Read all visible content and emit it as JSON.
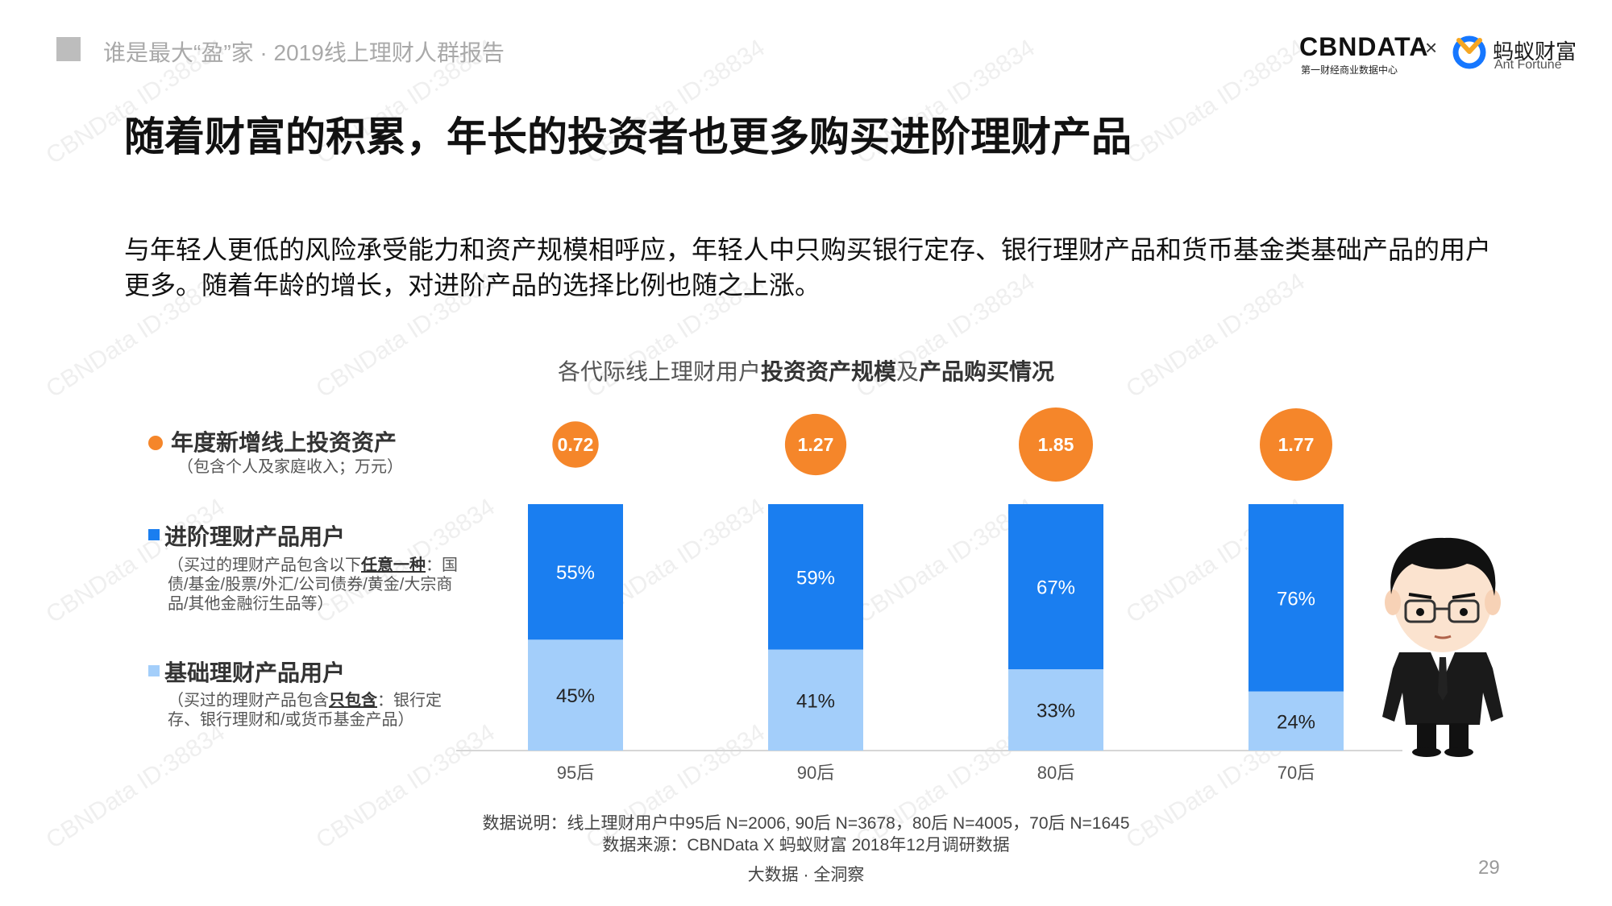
{
  "header": {
    "report_title": "谁是最大“盈”家 · 2019线上理财人群报告",
    "logo_cbn": "CBNDATA",
    "logo_cbn_sub": "第一财经商业数据中心",
    "logo_times": "×",
    "logo_ant_cn": "蚂蚁财富",
    "logo_ant_en": "Ant Fortune"
  },
  "main_title": "随着财富的积累，年长的投资者也更多购买进阶理财产品",
  "description": "与年轻人更低的风险承受能力和资产规模相呼应，年轻人中只购买银行定存、银行理财产品和货币基金类基础产品的用户更多。随着年龄的增长，对进阶产品的选择比例也随之上涨。",
  "chart_title": {
    "part1": "各代际线上理财用户",
    "part2": "投资资产规模",
    "part3": "及",
    "part4": "产品购买情况"
  },
  "legend": {
    "new_assets": {
      "label": "年度新增线上投资资产",
      "note": "（包含个人及家庭收入；万元）",
      "color": "#f5862a"
    },
    "advanced": {
      "label": "进阶理财产品用户",
      "note_a": "（买过的理财产品包含以下",
      "note_b": "任意一种",
      "note_c": "：国债/基金/股票/外汇/公司债券/黄金/大宗商品/其他金融衍生品等）",
      "color": "#1a7ef0"
    },
    "basic": {
      "label": "基础理财产品用户",
      "note_a": "（买过的理财产品包含",
      "note_b": "只包含",
      "note_c": "：银行定存、银行理财和/或货币基金产品）",
      "color": "#a3cefa"
    }
  },
  "chart_data": {
    "type": "bar",
    "stacked": true,
    "categories": [
      "95后",
      "90后",
      "80后",
      "70后"
    ],
    "series": [
      {
        "name": "基础理财产品用户",
        "values": [
          45,
          41,
          33,
          24
        ],
        "labels": [
          "45%",
          "41%",
          "33%",
          "24%"
        ],
        "color": "#a3cefa"
      },
      {
        "name": "进阶理财产品用户",
        "values": [
          55,
          59,
          67,
          76
        ],
        "labels": [
          "55%",
          "59%",
          "67%",
          "76%"
        ],
        "color": "#1a7ef0"
      }
    ],
    "bubble_series": {
      "name": "年度新增线上投资资产",
      "unit": "万元",
      "values": [
        0.72,
        1.27,
        1.85,
        1.77
      ],
      "labels": [
        "0.72",
        "1.27",
        "1.85",
        "1.77"
      ],
      "color": "#f5862a"
    },
    "ylim": [
      0,
      100
    ],
    "title": "各代际线上理财用户投资资产规模及产品购买情况"
  },
  "source": {
    "note": "数据说明：线上理财用户中95后 N=2006, 90后 N=3678，80后 N=4005，70后 N=1645",
    "origin": "数据来源：CBNData X 蚂蚁财富 2018年12月调研数据"
  },
  "footer": "大数据 · 全洞察",
  "page_number": "29",
  "watermark": "CBNData ID:38834"
}
